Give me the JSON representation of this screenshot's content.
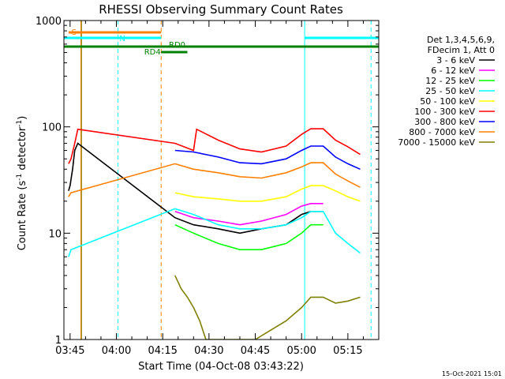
{
  "chart_data": {
    "type": "line",
    "title": "RHESSI Observing Summary Count Rates",
    "xlabel": "Start Time (04-Oct-08 03:43:22)",
    "ylabel_main": "Count Rate (s",
    "ylabel_sup1": "-1",
    "ylabel_mid": " detector",
    "ylabel_sup2": "-1",
    "ylabel_end": ")",
    "yscale": "log",
    "ylim": [
      1,
      1000
    ],
    "xlim_min": [
      -2,
      100
    ],
    "x_ticks": [
      {
        "min": 0,
        "label": "03:45"
      },
      {
        "min": 15,
        "label": "04:00"
      },
      {
        "min": 30,
        "label": "04:15"
      },
      {
        "min": 45,
        "label": "04:30"
      },
      {
        "min": 60,
        "label": "04:45"
      },
      {
        "min": 75,
        "label": "05:00"
      },
      {
        "min": 90,
        "label": "05:15"
      }
    ],
    "y_ticks": [
      {
        "value": 1,
        "label": "1"
      },
      {
        "value": 10,
        "label": "10"
      },
      {
        "value": 100,
        "label": "100"
      },
      {
        "value": 1000,
        "label": "1000"
      }
    ],
    "legend_header": [
      "Det 1,3,4,5,6,9,",
      "FDecim 1, Att 0"
    ],
    "series": [
      {
        "name": "3 - 6 keV",
        "color": "#000000",
        "x": [
          -0.5,
          0,
          0.8,
          1.5,
          2.5,
          34,
          40,
          48,
          55,
          62,
          70,
          75,
          78,
          82
        ],
        "y": [
          25,
          28,
          40,
          60,
          70,
          14,
          12,
          11,
          10,
          11,
          12,
          15,
          16,
          16
        ]
      },
      {
        "name": "6 - 12 keV",
        "color": "#ff00ff",
        "x": [
          34,
          40,
          48,
          55,
          62,
          70,
          75,
          78,
          82
        ],
        "y": [
          16,
          14,
          13,
          12,
          13,
          15,
          18,
          19,
          19
        ]
      },
      {
        "name": "12 - 25 keV",
        "color": "#00ff00",
        "x": [
          34,
          40,
          48,
          55,
          62,
          70,
          75,
          78,
          82
        ],
        "y": [
          12,
          10,
          8,
          7,
          7,
          8,
          10,
          12,
          12
        ]
      },
      {
        "name": "25 - 50 keV",
        "color": "#00ffff",
        "x": [
          -0.5,
          0.3,
          34,
          40,
          48,
          55,
          62,
          70,
          75,
          78,
          82,
          86,
          90,
          94
        ],
        "y": [
          6,
          7,
          17,
          15,
          12,
          11,
          11,
          12,
          14,
          16,
          16,
          10,
          8,
          6.5
        ]
      },
      {
        "name": "50 - 100 keV",
        "color": "#ffff00",
        "x": [
          34,
          40,
          48,
          55,
          62,
          70,
          75,
          78,
          82,
          86,
          90,
          94
        ],
        "y": [
          24,
          22,
          21,
          20,
          20,
          22,
          26,
          28,
          28,
          25,
          22,
          20
        ]
      },
      {
        "name": "100 - 300 keV",
        "color": "#ff0000",
        "x": [
          -0.5,
          0.3,
          1.5,
          2.5,
          34,
          40,
          41,
          48,
          55,
          62,
          70,
          75,
          78,
          82,
          86,
          90,
          94
        ],
        "y": [
          45,
          50,
          70,
          95,
          70,
          60,
          95,
          75,
          62,
          58,
          66,
          85,
          96,
          96,
          75,
          65,
          55
        ]
      },
      {
        "name": "300 - 800 keV",
        "color": "#0000ff",
        "x": [
          34,
          40,
          48,
          55,
          62,
          70,
          75,
          78,
          82,
          86,
          90,
          94
        ],
        "y": [
          60,
          58,
          52,
          46,
          45,
          50,
          60,
          66,
          66,
          52,
          45,
          40
        ]
      },
      {
        "name": "800 - 7000 keV",
        "color": "#ff8000",
        "x": [
          -0.5,
          0.3,
          34,
          40,
          48,
          55,
          62,
          70,
          75,
          78,
          82,
          86,
          90,
          94
        ],
        "y": [
          22,
          24,
          45,
          40,
          37,
          34,
          33,
          37,
          42,
          46,
          46,
          36,
          31,
          27
        ]
      },
      {
        "name": "7000 - 15000 keV",
        "color": "#808000",
        "x": [
          34,
          36,
          38,
          40,
          42,
          44,
          60,
          70,
          75,
          78,
          82,
          86,
          90,
          94
        ],
        "y": [
          4,
          3,
          2.5,
          2,
          1.5,
          1,
          1,
          1.5,
          2,
          2.5,
          2.5,
          2.2,
          2.3,
          2.5
        ]
      }
    ],
    "flag_bars": [
      {
        "label": "S",
        "color": "#ff8000"
      },
      {
        "label": "N",
        "color": "#00ffff"
      },
      {
        "label": "RD0",
        "color": "#008000"
      },
      {
        "label": "RD4",
        "color": "#008000"
      }
    ],
    "timestamp": "15-Oct-2021 15:01"
  }
}
